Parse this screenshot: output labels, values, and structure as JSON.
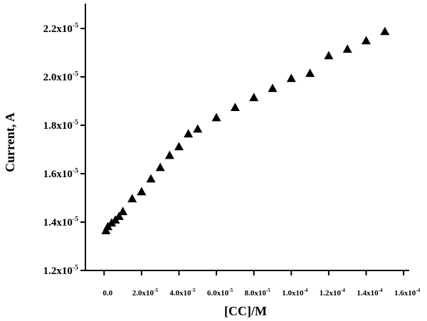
{
  "chart_data": {
    "type": "scatter",
    "x_label": "[CC]/M",
    "y_label": "Current, A",
    "marker": "triangle",
    "color": "#000000",
    "x": [
      1e-06,
      2e-06,
      4e-06,
      6e-06,
      8e-06,
      1e-05,
      1.5e-05,
      2e-05,
      2.5e-05,
      3e-05,
      3.5e-05,
      4e-05,
      4.5e-05,
      5e-05,
      6e-05,
      7e-05,
      8e-05,
      9e-05,
      0.0001,
      0.00011,
      0.00012,
      0.00013,
      0.00014,
      0.00015
    ],
    "values": [
      1.365e-05,
      1.382e-05,
      1.397e-05,
      1.409e-05,
      1.424e-05,
      1.444e-05,
      1.497e-05,
      1.526e-05,
      1.579e-05,
      1.626e-05,
      1.676e-05,
      1.712e-05,
      1.765e-05,
      1.785e-05,
      1.832e-05,
      1.874e-05,
      1.915e-05,
      1.953e-05,
      1.994e-05,
      2.015e-05,
      2.088e-05,
      2.115e-05,
      2.15e-05,
      2.188e-05
    ],
    "xlim": [
      -1e-05,
      0.000163
    ],
    "ylim": [
      1.2e-05,
      2.303e-05
    ],
    "xticks": [
      {
        "value": 0,
        "label": "0.0"
      },
      {
        "value": 2e-05,
        "label": "2.0x10",
        "exponent": "-5"
      },
      {
        "value": 4e-05,
        "label": "4.0x10",
        "exponent": "-5"
      },
      {
        "value": 6e-05,
        "label": "6.0x10",
        "exponent": "-5"
      },
      {
        "value": 8e-05,
        "label": "8.0x10",
        "exponent": "-5"
      },
      {
        "value": 0.0001,
        "label": "1.0x10",
        "exponent": "-4"
      },
      {
        "value": 0.00012,
        "label": "1.2x10",
        "exponent": "-4"
      },
      {
        "value": 0.00014,
        "label": "1.4x10",
        "exponent": "-4"
      },
      {
        "value": 0.00016,
        "label": "1.6x10",
        "exponent": "-4"
      }
    ],
    "yticks": [
      {
        "value": 1.2e-05,
        "label": "1.2x10",
        "exponent": "-5"
      },
      {
        "value": 1.4e-05,
        "label": "1.4x10",
        "exponent": "-5"
      },
      {
        "value": 1.6e-05,
        "label": "1.6x10",
        "exponent": "-5"
      },
      {
        "value": 1.8e-05,
        "label": "1.8x10",
        "exponent": "-5"
      },
      {
        "value": 2e-05,
        "label": "2.0x10",
        "exponent": "-5"
      },
      {
        "value": 2.2e-05,
        "label": "2.2x10",
        "exponent": "-5"
      }
    ],
    "grid": false
  }
}
